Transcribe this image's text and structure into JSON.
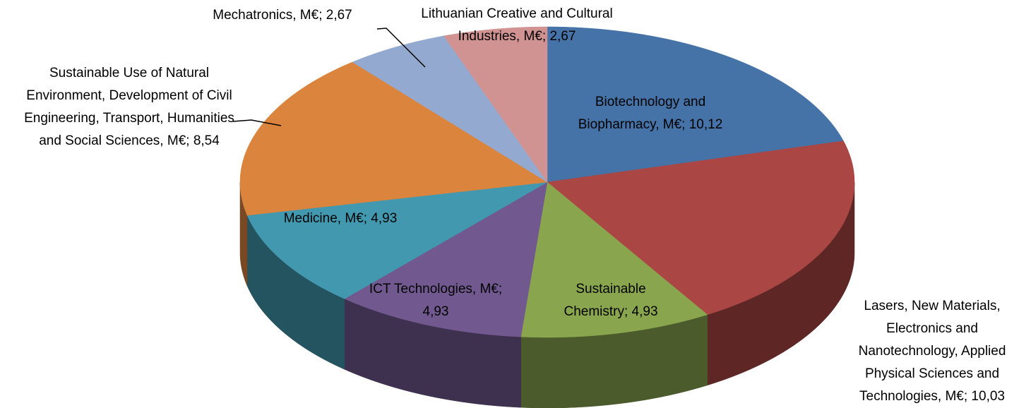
{
  "chart_data": {
    "type": "pie3d",
    "values": [
      10.12,
      10.03,
      4.93,
      4.93,
      4.93,
      8.54,
      2.67,
      2.67
    ],
    "value_labels": [
      "Biotechnology and Biopharmacy, M€; 10,12",
      "Lasers, New Materials, Electronics and Nanotechnology, Applied Physical Sciences and Technologies, M€; 10,03",
      "Sustainable Chemistry; 4,93",
      "ICT Technologies, M€; 4,93",
      "Medicine, M€; 4,93",
      "Sustainable Use of Natural Environment, Development of Civil Engineering, Transport, Humanities and Social Sciences, M€; 8,54",
      "Mechatronics, M€; 2,67",
      "Lithuanian Creative and Cultural Industries, M€; 2,67"
    ],
    "colors": [
      "#4572a7",
      "#aa4643",
      "#89a54e",
      "#71588f",
      "#4198af",
      "#db843d",
      "#93a9cf",
      "#d19392"
    ]
  }
}
